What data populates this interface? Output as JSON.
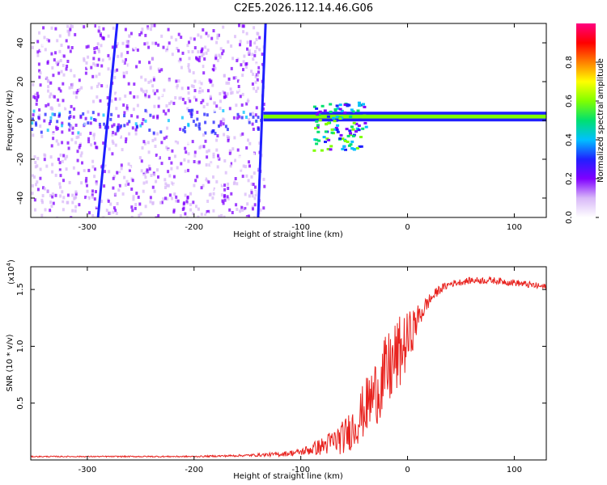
{
  "figure_title": "C2E5.2026.112.14.46.G06",
  "chart_data": [
    {
      "type": "heatmap",
      "title": "C2E5.2026.112.14.46.G06",
      "xlabel": "Height of straight line (km)",
      "ylabel": "Frequency (Hz)",
      "xlim": [
        -353,
        130
      ],
      "ylim": [
        -50,
        50
      ],
      "x_ticks": [
        -300,
        -200,
        -100,
        0,
        100
      ],
      "x_tick_labels": [
        "-300",
        "-200",
        "-100",
        "0",
        "100"
      ],
      "y_ticks": [
        -40,
        -20,
        0,
        20,
        40
      ],
      "y_tick_labels": [
        "-40",
        "-20",
        "0",
        "20",
        "40"
      ],
      "colorbar": {
        "label": "Normalized spectral amplitude",
        "range": [
          0,
          1
        ],
        "ticks": [
          0.0,
          0.2,
          0.4,
          0.6,
          0.8
        ],
        "tick_labels": [
          "0.0",
          "0.2",
          "0.4",
          "0.6",
          "0.8"
        ],
        "colormap": [
          "#ffffff",
          "#d8b8f8",
          "#8000ff",
          "#2020ff",
          "#00c0ff",
          "#00e070",
          "#80ff00",
          "#ffff00",
          "#ff8000",
          "#ff0000",
          "#ff0080"
        ]
      },
      "features": [
        {
          "name": "noise band",
          "x_range": [
            -353,
            -135
          ],
          "freq_range": [
            -50,
            50
          ],
          "amplitude": 0.15
        },
        {
          "name": "diagonal streak 1",
          "from": [
            -290,
            -50
          ],
          "to": [
            -272,
            50
          ],
          "amplitude": 0.25
        },
        {
          "name": "diagonal streak 2",
          "from": [
            -140,
            -50
          ],
          "to": [
            -133,
            50
          ],
          "amplitude": 0.25
        },
        {
          "name": "carrier line",
          "x_range": [
            -135,
            130
          ],
          "freq": 2,
          "amplitude": 0.6
        },
        {
          "name": "scintillation cluster",
          "x_range": [
            -90,
            -40
          ],
          "freq_range": [
            -15,
            10
          ],
          "amplitude": 0.45
        }
      ]
    },
    {
      "type": "line",
      "xlabel": "Height of straight line (km)",
      "ylabel": "SNR (10 * v/v)",
      "y_multiplier": "(x10^4)",
      "y_multiplier_base": "(x10",
      "y_multiplier_exp": "4",
      "y_multiplier_close": ")",
      "xlim": [
        -353,
        130
      ],
      "ylim": [
        0,
        1.7
      ],
      "x_ticks": [
        -300,
        -200,
        -100,
        0,
        100
      ],
      "x_tick_labels": [
        "-300",
        "-200",
        "-100",
        "0",
        "100"
      ],
      "y_ticks": [
        0.5,
        1.0,
        1.5
      ],
      "y_tick_labels": [
        "0.5",
        "1.0",
        "1.5"
      ],
      "color": "#e8231f",
      "series": [
        {
          "name": "SNR",
          "x": [
            -353,
            -300,
            -250,
            -200,
            -150,
            -120,
            -100,
            -80,
            -60,
            -50,
            -40,
            -30,
            -20,
            -10,
            0,
            10,
            20,
            30,
            40,
            60,
            80,
            100,
            115,
            130
          ],
          "y": [
            0.03,
            0.03,
            0.03,
            0.03,
            0.04,
            0.05,
            0.07,
            0.12,
            0.2,
            0.3,
            0.45,
            0.6,
            0.75,
            0.9,
            1.05,
            1.25,
            1.4,
            1.5,
            1.55,
            1.58,
            1.58,
            1.56,
            1.54,
            1.52
          ],
          "noise_amplitude": [
            0.005,
            0.005,
            0.006,
            0.006,
            0.01,
            0.02,
            0.03,
            0.08,
            0.15,
            0.2,
            0.25,
            0.3,
            0.35,
            0.35,
            0.25,
            0.12,
            0.06,
            0.04,
            0.03,
            0.03,
            0.03,
            0.03,
            0.03,
            0.03
          ]
        }
      ]
    }
  ]
}
